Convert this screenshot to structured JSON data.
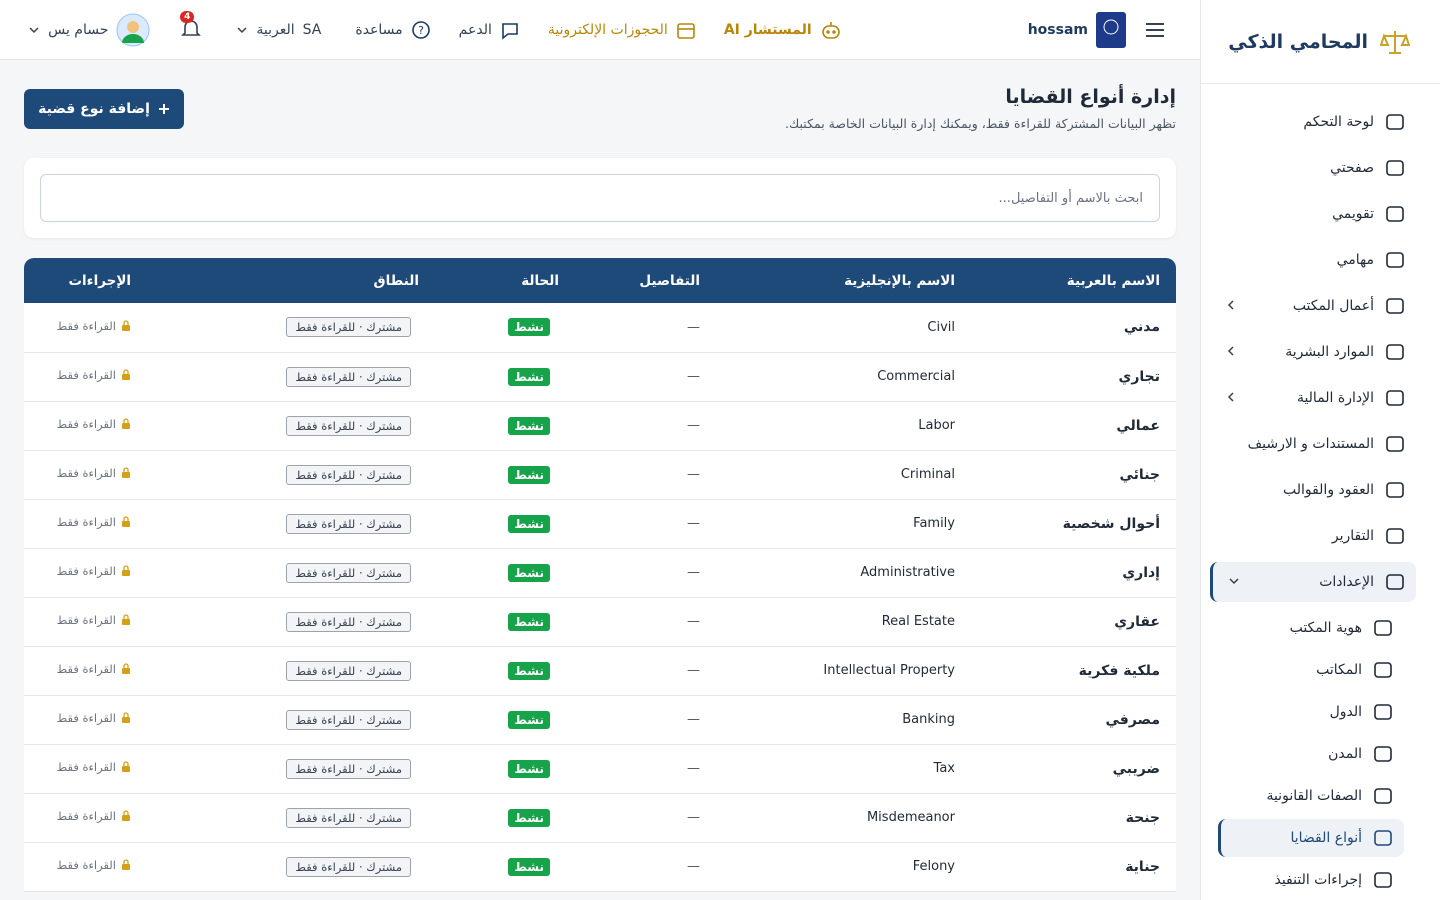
{
  "sidebar": {
    "brand": "المحامي الذكي",
    "menu": [
      {
        "label": "لوحة التحكم"
      },
      {
        "label": "صفحتي"
      },
      {
        "label": "تقويمي"
      },
      {
        "label": "مهامي"
      },
      {
        "label": "أعمال المكتب",
        "expandable": true
      },
      {
        "label": "الموارد البشرية",
        "expandable": true
      },
      {
        "label": "الإدارة المالية",
        "expandable": true
      },
      {
        "label": "المستندات و الارشيف"
      },
      {
        "label": "العقود والقوالب"
      },
      {
        "label": "التقارير"
      },
      {
        "label": "الإعدادات",
        "expandable": true,
        "active": true
      }
    ],
    "submenu": [
      {
        "label": "هوية المكتب"
      },
      {
        "label": "المكاتب"
      },
      {
        "label": "الدول"
      },
      {
        "label": "المدن"
      },
      {
        "label": "الصفات القانونية"
      },
      {
        "label": "أنواع القضايا",
        "active": true
      },
      {
        "label": "إجراءات التنفيذ"
      }
    ]
  },
  "topbar": {
    "user": "hossam",
    "ai": "المستشار AI",
    "bookings": "الحجوزات الإلكترونية",
    "support": "الدعم",
    "help": "مساعدة",
    "language": "العربية",
    "country": "SA",
    "notifications": "4",
    "profile": "حسام يس"
  },
  "header": {
    "title": "إدارة أنواع القضايا",
    "subtitle": "تظهر البيانات المشتركة للقراءة فقط، ويمكنك إدارة البيانات الخاصة بمكتبك.",
    "add_button": "إضافة نوع قضية"
  },
  "search": {
    "placeholder": "ابحث بالاسم أو التفاصيل..."
  },
  "table": {
    "columns": [
      "الاسم بالعربية",
      "الاسم بالإنجليزية",
      "التفاصيل",
      "الحالة",
      "النطاق",
      "الإجراءات"
    ],
    "rows": [
      [
        "مدني",
        "Civil",
        "—",
        "نشط",
        "مشترك · للقراءة فقط",
        "القراءة فقط"
      ],
      [
        "تجاري",
        "Commercial",
        "—",
        "نشط",
        "مشترك · للقراءة فقط",
        "القراءة فقط"
      ],
      [
        "عمالي",
        "Labor",
        "—",
        "نشط",
        "مشترك · للقراءة فقط",
        "القراءة فقط"
      ],
      [
        "جنائي",
        "Criminal",
        "—",
        "نشط",
        "مشترك · للقراءة فقط",
        "القراءة فقط"
      ],
      [
        "أحوال شخصية",
        "Family",
        "—",
        "نشط",
        "مشترك · للقراءة فقط",
        "القراءة فقط"
      ],
      [
        "إداري",
        "Administrative",
        "—",
        "نشط",
        "مشترك · للقراءة فقط",
        "القراءة فقط"
      ],
      [
        "عقاري",
        "Real Estate",
        "—",
        "نشط",
        "مشترك · للقراءة فقط",
        "القراءة فقط"
      ],
      [
        "ملكية فكرية",
        "Intellectual Property",
        "—",
        "نشط",
        "مشترك · للقراءة فقط",
        "القراءة فقط"
      ],
      [
        "مصرفي",
        "Banking",
        "—",
        "نشط",
        "مشترك · للقراءة فقط",
        "القراءة فقط"
      ],
      [
        "ضريبي",
        "Tax",
        "—",
        "نشط",
        "مشترك · للقراءة فقط",
        "القراءة فقط"
      ],
      [
        "جنحة",
        "Misdemeanor",
        "—",
        "نشط",
        "مشترك · للقراءة فقط",
        "القراءة فقط"
      ],
      [
        "جناية",
        "Felony",
        "—",
        "نشط",
        "مشترك · للقراءة فقط",
        "القراءة فقط"
      ]
    ]
  }
}
